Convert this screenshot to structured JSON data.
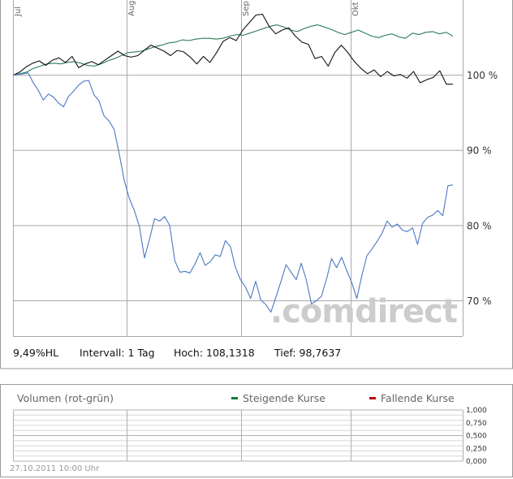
{
  "chart_data": [
    {
      "type": "line",
      "title": "",
      "xlabel": "",
      "ylabel": "",
      "ylim": [
        65.3,
        110
      ],
      "y_ticks": [
        70,
        80,
        90,
        100
      ],
      "y_tick_suffix": " %",
      "x_ticks": [
        "Jul",
        "Aug",
        "Sep",
        "Okt"
      ],
      "grid": true,
      "watermark": ".comdirect",
      "series": [
        {
          "color": "#2e7d55",
          "values": [
            100,
            100.2,
            100.4,
            100.9,
            101.2,
            101.5,
            101.6,
            101.5,
            101.7,
            101.8,
            101.6,
            101.3,
            101.2,
            101.5,
            101.9,
            102.2,
            102.6,
            103.0,
            103.1,
            103.2,
            103.5,
            103.8,
            104.0,
            104.3,
            104.4,
            104.7,
            104.6,
            104.8,
            104.9,
            104.9,
            104.8,
            104.9,
            105.2,
            105.4,
            105.3,
            105.6,
            105.9,
            106.2,
            106.5,
            106.7,
            106.4,
            106.0,
            105.8,
            106.2,
            106.5,
            106.7,
            106.4,
            106.1,
            105.7,
            105.4,
            105.7,
            106.0,
            105.6,
            105.2,
            105.0,
            105.3,
            105.5,
            105.1,
            104.9,
            105.6,
            105.4,
            105.7,
            105.8,
            105.5,
            105.7,
            105.2
          ]
        },
        {
          "color": "#111111",
          "values": [
            100,
            100.4,
            101.1,
            101.6,
            101.9,
            101.3,
            102.0,
            102.3,
            101.7,
            102.5,
            101.0,
            101.5,
            101.8,
            101.4,
            102.0,
            102.6,
            103.2,
            102.6,
            102.4,
            102.6,
            103.3,
            104.0,
            103.6,
            103.2,
            102.6,
            103.3,
            103.1,
            102.4,
            101.5,
            102.5,
            101.7,
            103.0,
            104.5,
            105.0,
            104.6,
            106.0,
            107.0,
            108.0,
            108.1,
            106.5,
            105.5,
            106.0,
            106.3,
            105.2,
            104.4,
            104.1,
            102.2,
            102.5,
            101.2,
            103.0,
            104.0,
            103.0,
            101.8,
            100.9,
            100.2,
            100.7,
            99.8,
            100.5,
            99.9,
            100.1,
            99.6,
            100.5,
            99.0,
            99.4,
            99.7,
            100.6,
            98.8,
            98.8
          ]
        },
        {
          "color": "#4a78c4",
          "values": [
            100,
            100.1,
            100.2,
            100.3,
            99.0,
            98.0,
            96.7,
            97.5,
            97.1,
            96.3,
            95.8,
            97.2,
            97.9,
            98.7,
            99.2,
            99.3,
            97.4,
            96.6,
            94.6,
            93.9,
            92.8,
            89.6,
            86.0,
            83.6,
            82.0,
            79.9,
            75.7,
            78.2,
            80.9,
            80.6,
            81.2,
            80.0,
            75.3,
            73.8,
            73.9,
            73.7,
            74.9,
            76.4,
            74.7,
            75.2,
            76.1,
            75.9,
            78.0,
            77.2,
            74.4,
            72.8,
            71.8,
            70.3,
            72.6,
            70.1,
            69.5,
            68.5,
            70.5,
            72.6,
            74.8,
            73.8,
            72.8,
            75.0,
            72.8,
            69.6,
            70.0,
            70.6,
            72.9,
            75.6,
            74.4,
            75.8,
            74.0,
            72.4,
            70.3,
            73.4,
            76.0,
            76.9,
            77.9,
            79.0,
            80.6,
            79.8,
            80.2,
            79.4,
            79.2,
            79.7,
            77.5,
            80.3,
            81.1,
            81.4,
            82.0,
            81.3,
            85.3,
            85.4
          ]
        }
      ]
    },
    {
      "type": "bar",
      "title": "Volumen (rot-grün)",
      "ylim": [
        0,
        1
      ],
      "y_ticks": [
        "1,000",
        "0,750",
        "0,500",
        "0,250",
        "0,000"
      ],
      "grid": true,
      "values": []
    }
  ],
  "stats": {
    "hl": "9,49%HL",
    "interval": "Intervall: 1 Tag",
    "high": "Hoch: 108,1318",
    "low": "Tief: 98,7637"
  },
  "legend": {
    "rising": {
      "label": "Steigende Kurse",
      "color": "#1a7a3c"
    },
    "falling": {
      "label": "Fallende Kurse",
      "color": "#c00000"
    }
  },
  "timestamp": "27.10.2011 10:00 Uhr"
}
